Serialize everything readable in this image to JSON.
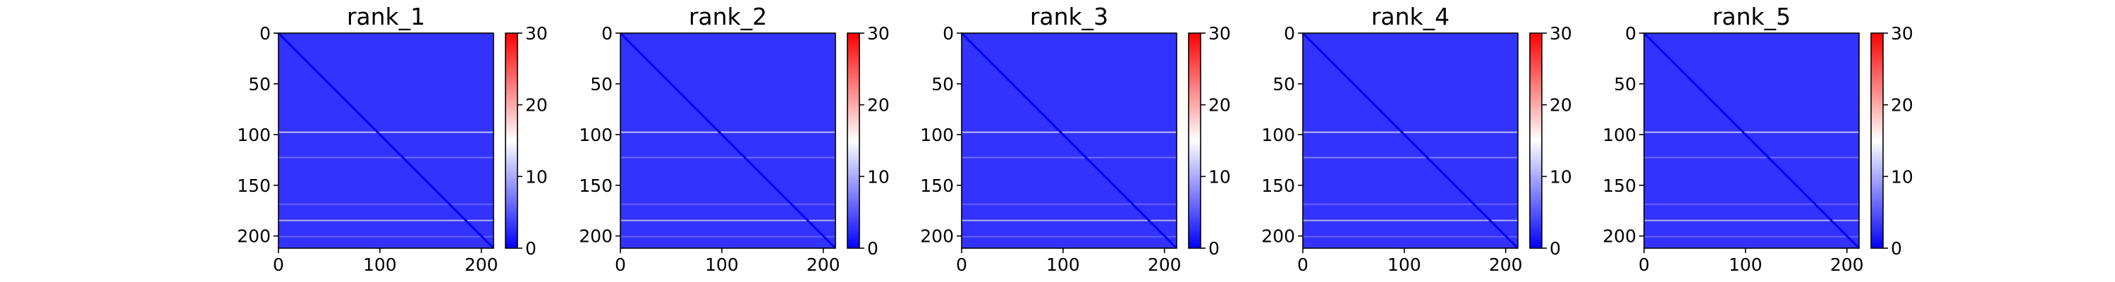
{
  "chart_data": [
    {
      "type": "heatmap",
      "title": "rank_1",
      "colormap": [
        "#0000ff",
        "#ffffff",
        "#ff0000"
      ],
      "xlim": [
        0,
        212
      ],
      "ylim": [
        212,
        0
      ],
      "xticks": [
        0,
        100,
        200
      ],
      "yticks": [
        0,
        50,
        100,
        150,
        200
      ],
      "colorbar": {
        "range": [
          0,
          30
        ],
        "ticks": [
          0,
          10,
          20,
          30
        ]
      },
      "grid": false,
      "matrix_size": 212,
      "background_value": 3,
      "bright_rows": [
        {
          "row": 97,
          "value": 12
        },
        {
          "row": 184,
          "value": 11
        },
        {
          "row": 122,
          "value": 7
        },
        {
          "row": 168,
          "value": 6
        },
        {
          "row": 200,
          "value": 6
        }
      ],
      "diagonal_value": 0
    },
    {
      "type": "heatmap",
      "title": "rank_2",
      "colormap": [
        "#0000ff",
        "#ffffff",
        "#ff0000"
      ],
      "xlim": [
        0,
        212
      ],
      "ylim": [
        212,
        0
      ],
      "xticks": [
        0,
        100,
        200
      ],
      "yticks": [
        0,
        50,
        100,
        150,
        200
      ],
      "colorbar": {
        "range": [
          0,
          30
        ],
        "ticks": [
          0,
          10,
          20,
          30
        ]
      },
      "grid": false,
      "matrix_size": 212,
      "background_value": 3,
      "bright_rows": [
        {
          "row": 97,
          "value": 12
        },
        {
          "row": 184,
          "value": 11
        },
        {
          "row": 122,
          "value": 7
        },
        {
          "row": 168,
          "value": 6
        },
        {
          "row": 200,
          "value": 6
        }
      ],
      "diagonal_value": 0
    },
    {
      "type": "heatmap",
      "title": "rank_3",
      "colormap": [
        "#0000ff",
        "#ffffff",
        "#ff0000"
      ],
      "xlim": [
        0,
        212
      ],
      "ylim": [
        212,
        0
      ],
      "xticks": [
        0,
        100,
        200
      ],
      "yticks": [
        0,
        50,
        100,
        150,
        200
      ],
      "colorbar": {
        "range": [
          0,
          30
        ],
        "ticks": [
          0,
          10,
          20,
          30
        ]
      },
      "grid": false,
      "matrix_size": 212,
      "background_value": 3,
      "bright_rows": [
        {
          "row": 97,
          "value": 12
        },
        {
          "row": 184,
          "value": 11
        },
        {
          "row": 122,
          "value": 7
        },
        {
          "row": 168,
          "value": 6
        },
        {
          "row": 200,
          "value": 6
        }
      ],
      "diagonal_value": 0
    },
    {
      "type": "heatmap",
      "title": "rank_4",
      "colormap": [
        "#0000ff",
        "#ffffff",
        "#ff0000"
      ],
      "xlim": [
        0,
        212
      ],
      "ylim": [
        212,
        0
      ],
      "xticks": [
        0,
        100,
        200
      ],
      "yticks": [
        0,
        50,
        100,
        150,
        200
      ],
      "colorbar": {
        "range": [
          0,
          30
        ],
        "ticks": [
          0,
          10,
          20,
          30
        ]
      },
      "grid": false,
      "matrix_size": 212,
      "background_value": 3,
      "bright_rows": [
        {
          "row": 97,
          "value": 12
        },
        {
          "row": 184,
          "value": 11
        },
        {
          "row": 122,
          "value": 8
        },
        {
          "row": 168,
          "value": 6
        },
        {
          "row": 200,
          "value": 6
        }
      ],
      "diagonal_value": 0
    },
    {
      "type": "heatmap",
      "title": "rank_5",
      "colormap": [
        "#0000ff",
        "#ffffff",
        "#ff0000"
      ],
      "xlim": [
        0,
        212
      ],
      "ylim": [
        212,
        0
      ],
      "xticks": [
        0,
        100,
        200
      ],
      "yticks": [
        0,
        50,
        100,
        150,
        200
      ],
      "colorbar": {
        "range": [
          0,
          30
        ],
        "ticks": [
          0,
          10,
          20,
          30
        ]
      },
      "grid": false,
      "matrix_size": 212,
      "background_value": 3,
      "bright_rows": [
        {
          "row": 97,
          "value": 12
        },
        {
          "row": 184,
          "value": 11
        },
        {
          "row": 122,
          "value": 7
        },
        {
          "row": 168,
          "value": 6
        },
        {
          "row": 200,
          "value": 6
        }
      ],
      "diagonal_value": 0
    }
  ]
}
